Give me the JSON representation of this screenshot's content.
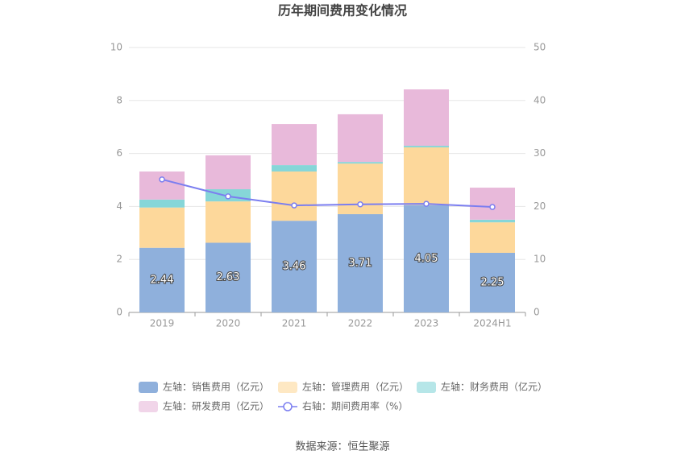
{
  "chart_data": {
    "type": "bar",
    "title": "历年期间费用变化情况",
    "source": "数据来源：恒生聚源",
    "categories": [
      "2019",
      "2020",
      "2021",
      "2022",
      "2023",
      "2024H1"
    ],
    "series": [
      {
        "name": "左轴：销售费用（亿元）",
        "color": "#8fb0dc",
        "values": [
          2.44,
          2.63,
          3.46,
          3.71,
          4.05,
          2.25
        ],
        "show_labels": true
      },
      {
        "name": "左轴：管理费用（亿元）",
        "color": "#fdd89b",
        "values": [
          1.52,
          1.56,
          1.86,
          1.91,
          2.18,
          1.15
        ]
      },
      {
        "name": "左轴：财务费用（亿元）",
        "color": "#86d6d8",
        "values": [
          0.3,
          0.46,
          0.24,
          0.06,
          0.06,
          0.1
        ]
      },
      {
        "name": "左轴：研发费用（亿元）",
        "color": "#e8b9da",
        "values": [
          1.06,
          1.28,
          1.55,
          1.8,
          2.13,
          1.21
        ]
      },
      {
        "name": "右轴：期间费用率（%）",
        "color": "#7b7ef0",
        "type": "line",
        "axis": "y2",
        "values": [
          25.1,
          21.9,
          20.2,
          20.4,
          20.5,
          19.9
        ]
      }
    ],
    "stacked": true,
    "ylim": [
      0,
      10
    ],
    "yticks": [
      0,
      2,
      4,
      6,
      8,
      10
    ],
    "y2lim": [
      0,
      50
    ],
    "y2ticks": [
      0,
      10,
      20,
      30,
      40,
      50
    ],
    "grid": true,
    "legend": "bottom"
  }
}
